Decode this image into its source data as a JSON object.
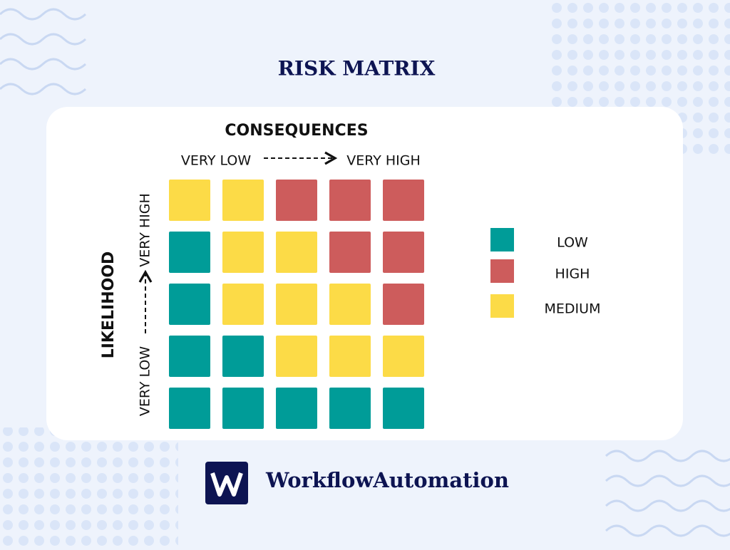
{
  "header": {
    "title": "RISK MATRIX"
  },
  "axes": {
    "x_title": "CONSEQUENCES",
    "x_low": "VERY LOW",
    "x_high": "VERY HIGH",
    "y_title": "LIKELIHOOD",
    "y_low": "VERY LOW",
    "y_high": "VERY HIGH"
  },
  "legend": [
    {
      "label": "LOW",
      "color": "#009c98"
    },
    {
      "label": "HIGH",
      "color": "#cd5c5c"
    },
    {
      "label": "MEDIUM",
      "color": "#fcdb47"
    }
  ],
  "matrix": [
    [
      2,
      2,
      1,
      1,
      1
    ],
    [
      0,
      2,
      2,
      1,
      1
    ],
    [
      0,
      2,
      2,
      2,
      1
    ],
    [
      0,
      0,
      2,
      2,
      2
    ],
    [
      0,
      0,
      0,
      0,
      0
    ]
  ],
  "brand": {
    "name": "WorkflowAutomation"
  }
}
